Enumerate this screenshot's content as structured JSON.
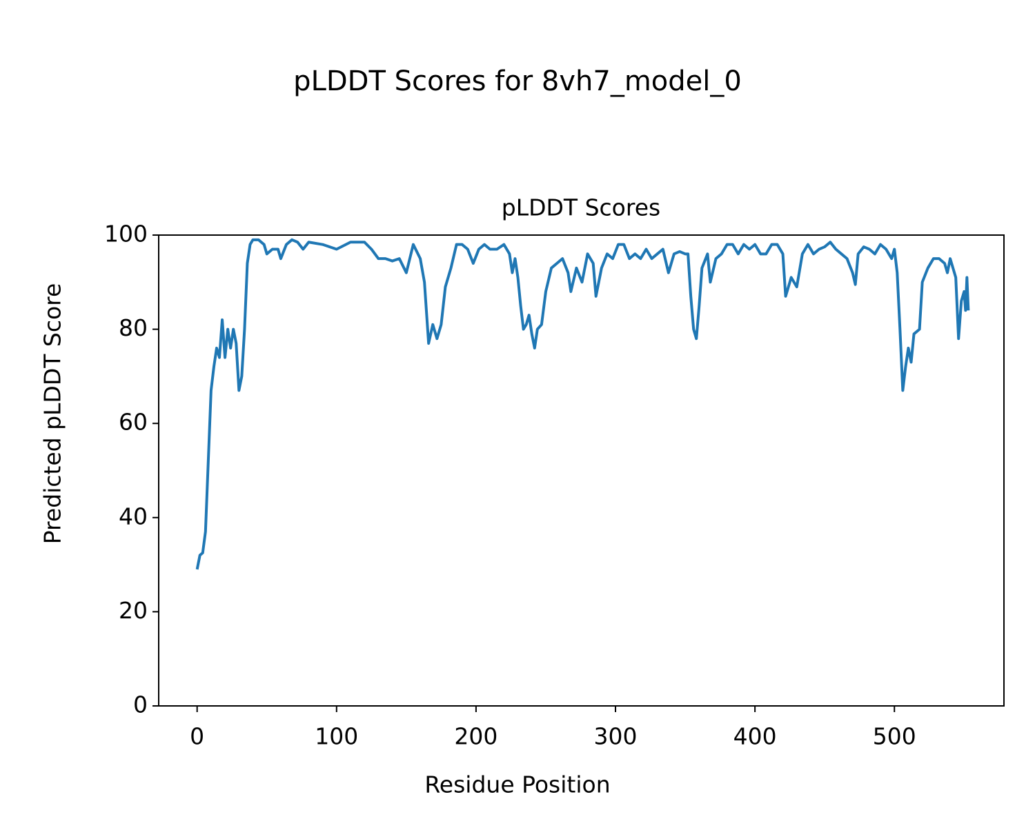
{
  "chart_data": {
    "type": "line",
    "title": "pLDDT Scores for 8vh7_model_0",
    "subtitle": "pLDDT Scores",
    "x_label": "Residue Position",
    "y_label": "Predicted pLDDT Score",
    "xlim": [
      -27.55,
      578.55
    ],
    "ylim": [
      0,
      100
    ],
    "xticks": [
      0,
      100,
      200,
      300,
      400,
      500
    ],
    "yticks": [
      0,
      20,
      40,
      60,
      80,
      100
    ],
    "x": [
      0,
      2,
      4,
      6,
      8,
      10,
      12,
      14,
      16,
      18,
      20,
      22,
      24,
      26,
      28,
      30,
      32,
      34,
      36,
      38,
      40,
      44,
      48,
      50,
      54,
      58,
      60,
      64,
      68,
      72,
      76,
      80,
      90,
      100,
      110,
      120,
      125,
      130,
      135,
      140,
      145,
      150,
      155,
      160,
      163,
      166,
      169,
      172,
      175,
      178,
      182,
      186,
      190,
      194,
      198,
      202,
      206,
      210,
      215,
      220,
      224,
      226,
      228,
      230,
      232,
      234,
      236,
      238,
      240,
      242,
      244,
      247,
      250,
      254,
      258,
      262,
      266,
      268,
      272,
      276,
      280,
      284,
      286,
      290,
      294,
      298,
      302,
      306,
      310,
      314,
      318,
      322,
      326,
      330,
      334,
      338,
      342,
      346,
      350,
      352,
      354,
      356,
      358,
      360,
      362,
      366,
      368,
      372,
      376,
      380,
      384,
      388,
      392,
      396,
      400,
      404,
      408,
      412,
      416,
      420,
      422,
      426,
      430,
      434,
      438,
      442,
      446,
      450,
      454,
      458,
      462,
      466,
      470,
      472,
      474,
      478,
      482,
      486,
      490,
      494,
      498,
      500,
      502,
      504,
      506,
      508,
      510,
      512,
      514,
      518,
      520,
      524,
      528,
      532,
      536,
      538,
      540,
      542,
      544,
      546,
      548,
      550,
      551,
      552,
      553
    ],
    "series": [
      {
        "name": "pLDDT",
        "color": "#1f77b4",
        "values": [
          29,
          32,
          32.5,
          37,
          52,
          67,
          72,
          76,
          74,
          82,
          74,
          80,
          76,
          80,
          77,
          67,
          70,
          80,
          94,
          98,
          99,
          99,
          98,
          96,
          97,
          97,
          95,
          98,
          99,
          98.5,
          97,
          98.5,
          98,
          97,
          98.5,
          98.5,
          97,
          95,
          95,
          94.5,
          95,
          92,
          98,
          95,
          90,
          77,
          81,
          78,
          81,
          89,
          93,
          98,
          98,
          97,
          94,
          97,
          98,
          97,
          97,
          98,
          96,
          92,
          95,
          91,
          85,
          80,
          81,
          83,
          79,
          76,
          80,
          81,
          88,
          93,
          94,
          95,
          92,
          88,
          93,
          90,
          96,
          94,
          87,
          93,
          96,
          95,
          98,
          98,
          95,
          96,
          95,
          97,
          95,
          96,
          97,
          92,
          96,
          96.5,
          96,
          96,
          87,
          80,
          78,
          85,
          93,
          96,
          90,
          95,
          96,
          98,
          98,
          96,
          98,
          97,
          98,
          96,
          96,
          98,
          98,
          96,
          87,
          91,
          89,
          96,
          98,
          96,
          97,
          97.5,
          98.5,
          97,
          96,
          95,
          92,
          89.5,
          96,
          97.5,
          97,
          96,
          98,
          97,
          95,
          97,
          92,
          80,
          67,
          72,
          76,
          73,
          79,
          80,
          90,
          93,
          95,
          95,
          94,
          92,
          95,
          93,
          91,
          78,
          86,
          88,
          84,
          91,
          84
        ]
      }
    ]
  }
}
